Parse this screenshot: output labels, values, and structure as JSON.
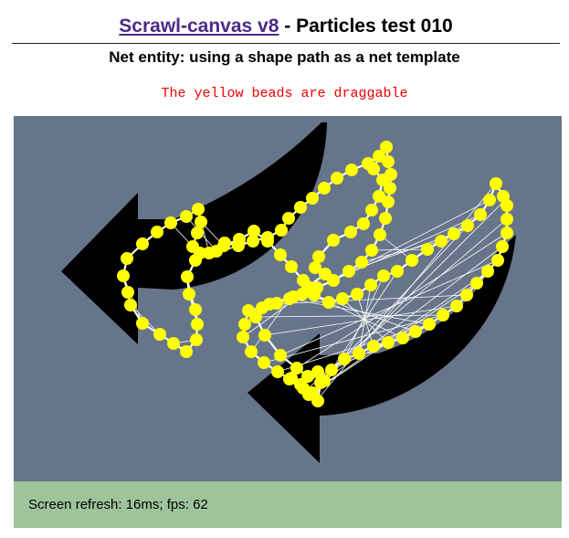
{
  "header": {
    "link_text": "Scrawl-canvas v8",
    "title_suffix": " - Particles test 010"
  },
  "subheading": "Net entity: using a shape path as a net template",
  "instruction": "The yellow beads are draggable",
  "status": {
    "text": "Screen refresh: 16ms; fps: 62"
  },
  "colors": {
    "canvas_background": "#67758a",
    "arrow_fill": "#000000",
    "bead_fill": "#ffff00",
    "net_lines": "#ffffff",
    "status_background": "#9dc49b",
    "link": "#4b2a86",
    "instruction": "#ee0000"
  }
}
